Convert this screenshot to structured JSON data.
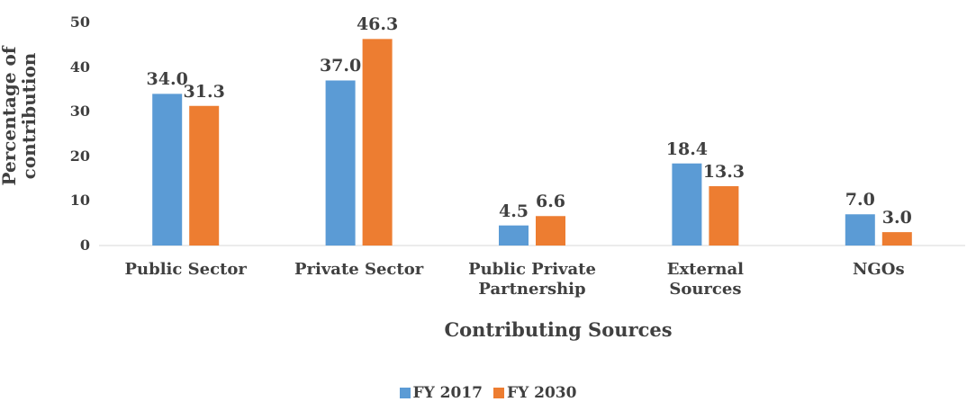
{
  "chart_data": {
    "type": "bar",
    "x_label": "Contributing Sources",
    "y_label": "Percentage of contribution",
    "categories": [
      "Public Sector",
      "Private Sector",
      "Public Private Partnership",
      "External Sources",
      "NGOs"
    ],
    "series": [
      {
        "name": "FY 2017",
        "color": "#5b9bd5",
        "values": [
          34.0,
          37.0,
          4.5,
          18.4,
          7.0
        ],
        "value_labels": [
          "34.0",
          "37.0",
          "4.5",
          "18.4",
          "7.0"
        ]
      },
      {
        "name": "FY 2030",
        "color": "#ed7d31",
        "values": [
          31.3,
          46.3,
          6.6,
          13.3,
          3.0
        ],
        "value_labels": [
          "31.3",
          "46.3",
          "6.6",
          "13.3",
          "3.0"
        ]
      }
    ],
    "ylim": [
      0,
      50
    ],
    "yticks": [
      0,
      10,
      20,
      30,
      40,
      50
    ],
    "grid": false,
    "legend": "bottom"
  }
}
